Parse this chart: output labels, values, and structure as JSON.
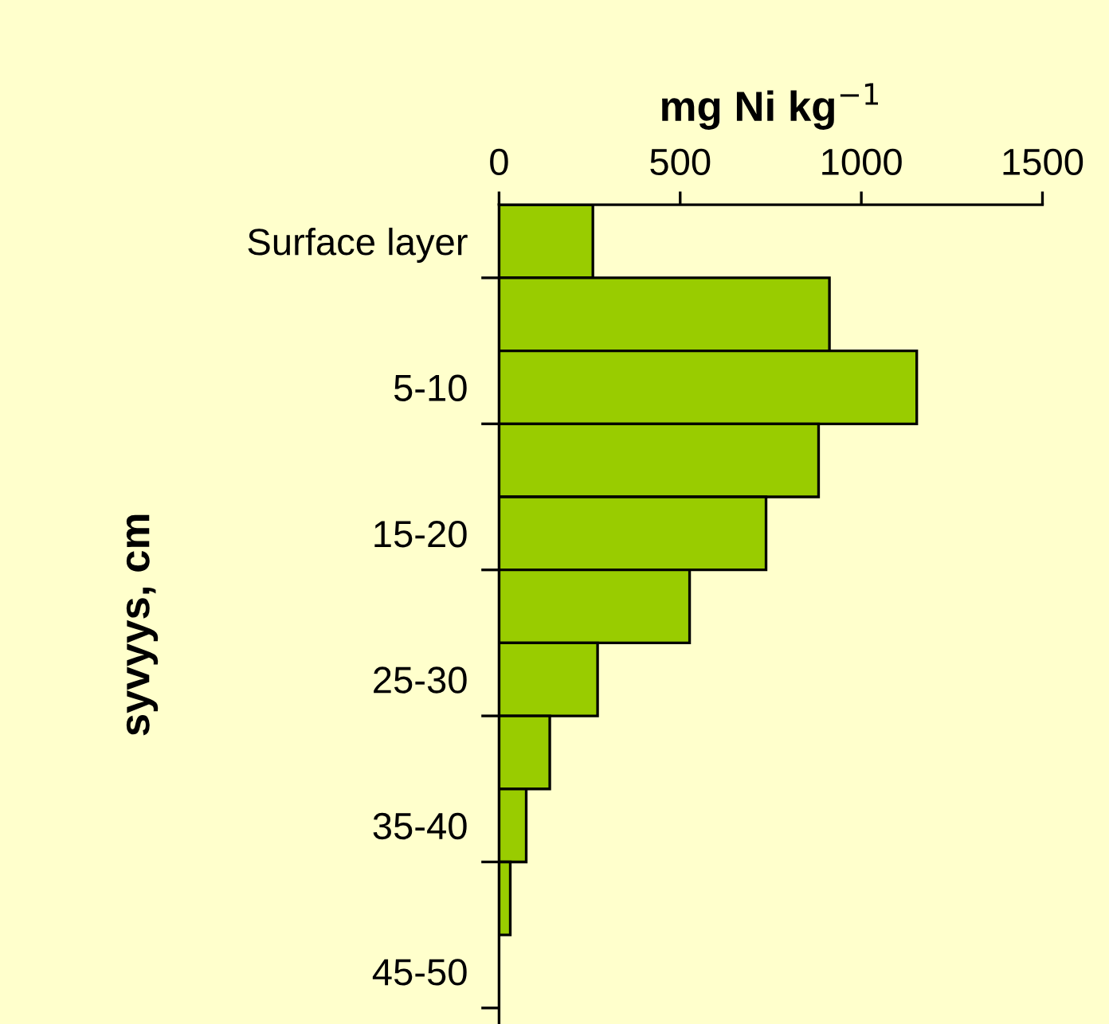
{
  "chart_data": {
    "type": "bar",
    "orientation": "horizontal",
    "xlabel": "mg Ni kg$^{−1}$",
    "ylabel": "syvyys, cm",
    "categories": [
      "Surface layer",
      null,
      "5-10",
      null,
      "15-20",
      null,
      "25-30",
      null,
      "35-40",
      null,
      "45-50"
    ],
    "values": [
      259,
      912,
      1153,
      882,
      737,
      526,
      272,
      140,
      75,
      31,
      null
    ],
    "color": "#99cc00",
    "xlim": [
      0,
      1500
    ],
    "xticks": [
      0,
      500,
      1000,
      1500
    ],
    "grid": false,
    "legend": false
  }
}
